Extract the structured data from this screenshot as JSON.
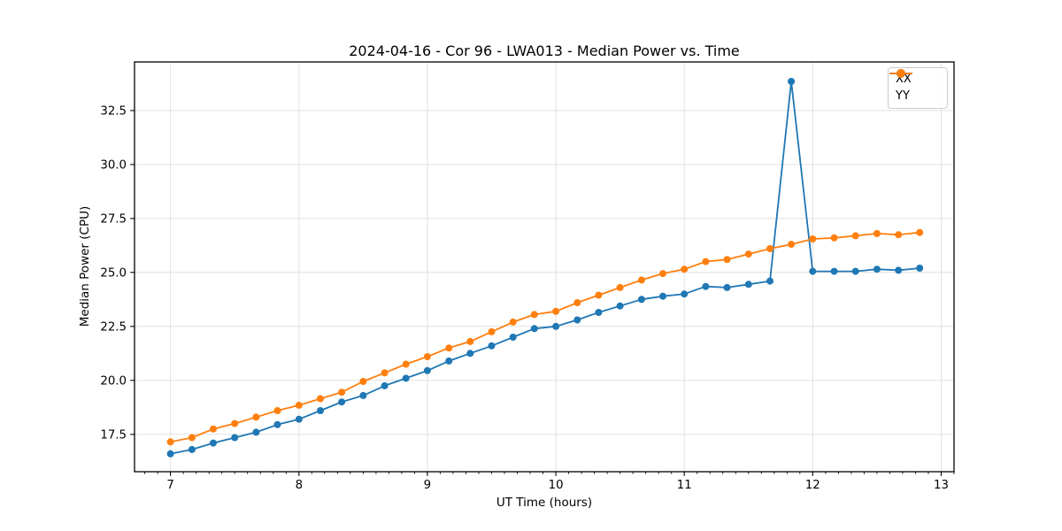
{
  "figure": {
    "background": "#ffffff",
    "spine_color": "#000000",
    "text_color": "#000000"
  },
  "chart_data": {
    "type": "line",
    "title": "2024-04-16 - Cor 96 - LWA013 - Median Power vs. Time",
    "xlabel": "UT Time (hours)",
    "ylabel": "Median Power (CPU)",
    "xlim": [
      6.72,
      13.1
    ],
    "ylim": [
      15.77,
      34.75
    ],
    "xticks": [
      7,
      8,
      9,
      10,
      11,
      12,
      13
    ],
    "yticks": [
      17.5,
      20.0,
      22.5,
      25.0,
      27.5,
      30.0,
      32.5
    ],
    "minor_xtick_step": 0.1,
    "grid": true,
    "grid_color": "#e0e0e0",
    "legend_position": "upper right",
    "marker": "circle",
    "x": [
      7.0,
      7.167,
      7.333,
      7.5,
      7.667,
      7.833,
      8.0,
      8.167,
      8.333,
      8.5,
      8.667,
      8.833,
      9.0,
      9.167,
      9.333,
      9.5,
      9.667,
      9.833,
      10.0,
      10.167,
      10.333,
      10.5,
      10.667,
      10.833,
      11.0,
      11.167,
      11.333,
      11.5,
      11.667,
      11.833,
      12.0,
      12.167,
      12.333,
      12.5,
      12.667,
      12.833
    ],
    "series": [
      {
        "name": "XX",
        "color": "#1f77b4",
        "values": [
          16.6,
          16.8,
          17.1,
          17.35,
          17.6,
          17.95,
          18.2,
          18.6,
          19.0,
          19.3,
          19.75,
          20.1,
          20.45,
          20.9,
          21.25,
          21.6,
          22.0,
          22.4,
          22.5,
          22.8,
          23.15,
          23.45,
          23.75,
          23.9,
          24.0,
          24.35,
          24.3,
          24.45,
          24.6,
          33.85,
          25.05,
          25.05,
          25.05,
          25.15,
          25.1,
          25.2
        ]
      },
      {
        "name": "YY",
        "color": "#ff7f0e",
        "values": [
          17.15,
          17.35,
          17.75,
          18.0,
          18.3,
          18.6,
          18.85,
          19.15,
          19.45,
          19.95,
          20.35,
          20.75,
          21.1,
          21.5,
          21.8,
          22.25,
          22.7,
          23.05,
          23.2,
          23.6,
          23.95,
          24.3,
          24.65,
          24.95,
          25.15,
          25.5,
          25.6,
          25.85,
          26.1,
          26.3,
          26.55,
          26.6,
          26.7,
          26.8,
          26.75,
          26.85
        ]
      }
    ]
  }
}
